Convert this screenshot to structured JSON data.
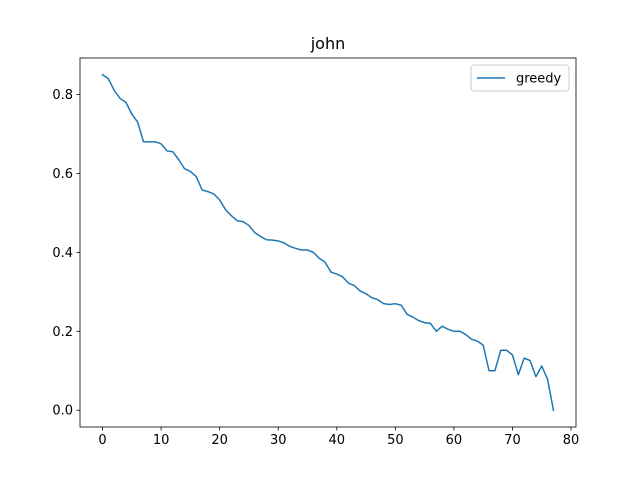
{
  "chart_data": {
    "type": "line",
    "title": "john",
    "xlabel": "",
    "ylabel": "",
    "xlim": [
      -3.85,
      80.85
    ],
    "ylim": [
      -0.0425,
      0.8925
    ],
    "xticks": [
      0,
      10,
      20,
      30,
      40,
      50,
      60,
      70,
      80
    ],
    "yticks": [
      0.0,
      0.2,
      0.4,
      0.6,
      0.8
    ],
    "xtick_labels": [
      "0",
      "10",
      "20",
      "30",
      "40",
      "50",
      "60",
      "70",
      "80"
    ],
    "ytick_labels": [
      "0.0",
      "0.2",
      "0.4",
      "0.6",
      "0.8"
    ],
    "grid": false,
    "legend_position": "top-right",
    "series": [
      {
        "name": "greedy",
        "color": "#1f77b4",
        "x": [
          0,
          1,
          2,
          3,
          4,
          5,
          6,
          7,
          8,
          9,
          10,
          11,
          12,
          13,
          14,
          15,
          16,
          17,
          18,
          19,
          20,
          21,
          22,
          23,
          24,
          25,
          26,
          27,
          28,
          29,
          30,
          31,
          32,
          33,
          34,
          35,
          36,
          37,
          38,
          39,
          40,
          41,
          42,
          43,
          44,
          45,
          46,
          47,
          48,
          49,
          50,
          51,
          52,
          53,
          54,
          55,
          56,
          57,
          58,
          59,
          60,
          61,
          62,
          63,
          64,
          65,
          66,
          67,
          68,
          69,
          70,
          71,
          72,
          73,
          74,
          75,
          76,
          77
        ],
        "y": [
          0.85,
          0.84,
          0.81,
          0.79,
          0.78,
          0.75,
          0.73,
          0.68,
          0.68,
          0.68,
          0.675,
          0.657,
          0.655,
          0.635,
          0.612,
          0.605,
          0.592,
          0.558,
          0.554,
          0.548,
          0.533,
          0.508,
          0.493,
          0.48,
          0.478,
          0.468,
          0.45,
          0.44,
          0.432,
          0.431,
          0.429,
          0.424,
          0.415,
          0.41,
          0.406,
          0.406,
          0.4,
          0.385,
          0.375,
          0.35,
          0.345,
          0.338,
          0.322,
          0.316,
          0.302,
          0.295,
          0.285,
          0.28,
          0.27,
          0.268,
          0.27,
          0.266,
          0.243,
          0.236,
          0.227,
          0.222,
          0.22,
          0.2,
          0.213,
          0.205,
          0.2,
          0.2,
          0.192,
          0.18,
          0.175,
          0.165,
          0.1,
          0.1,
          0.152,
          0.152,
          0.14,
          0.09,
          0.132,
          0.126,
          0.085,
          0.112,
          0.078,
          0.0
        ]
      }
    ]
  }
}
